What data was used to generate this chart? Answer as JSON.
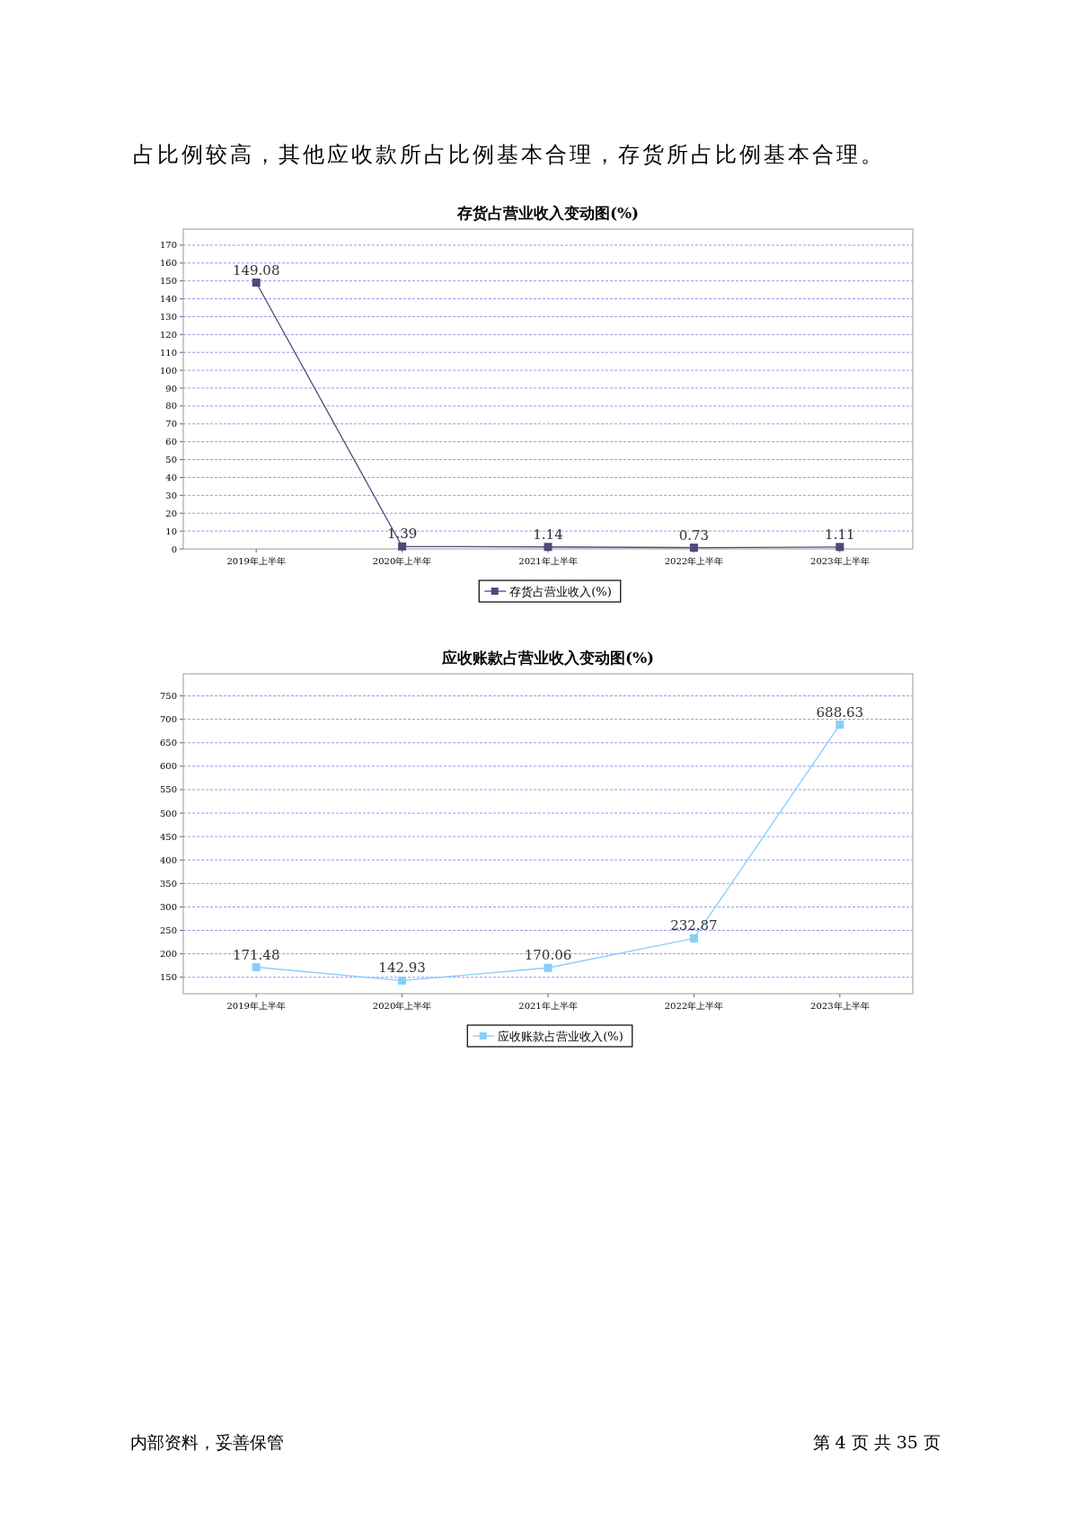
{
  "chart_data": [
    {
      "type": "line",
      "title": "存货占营业收入变动图(%)",
      "categories": [
        "2019年上半年",
        "2020年上半年",
        "2021年上半年",
        "2022年上半年",
        "2023年上半年"
      ],
      "series": [
        {
          "name": "存货占营业收入(%)",
          "color": "#4b4b7c",
          "values": [
            149.08,
            1.39,
            1.14,
            0.73,
            1.11
          ]
        }
      ],
      "ylim": [
        0,
        179
      ],
      "yticks": [
        0,
        10,
        20,
        30,
        40,
        50,
        60,
        70,
        80,
        90,
        100,
        110,
        120,
        130,
        140,
        150,
        160,
        170
      ],
      "grid": "y",
      "legend": "bottom",
      "marker": "square",
      "line_style": "solid",
      "data_labels": true,
      "annotations": [
        "占比例较高，其他应收款所占比例基本合理，存货所占比例基本合理。"
      ]
    },
    {
      "type": "line",
      "title": "应收账款占营业收入变动图(%)",
      "categories": [
        "2019年上半年",
        "2020年上半年",
        "2021年上半年",
        "2022年上半年",
        "2023年上半年"
      ],
      "series": [
        {
          "name": "应收账款占营业收入(%)",
          "color": "#87cefa",
          "values": [
            171.48,
            142.93,
            170.06,
            232.87,
            688.63
          ]
        }
      ],
      "ylim": [
        115,
        797
      ],
      "yticks": [
        150,
        200,
        250,
        300,
        350,
        400,
        450,
        500,
        550,
        600,
        650,
        700,
        750
      ],
      "grid": "y",
      "legend": "bottom",
      "marker": "square",
      "line_style": "solid",
      "data_labels": true,
      "annotations": [
        "内部资料，妥善保管",
        "第 4 页   共 35 页"
      ]
    }
  ]
}
